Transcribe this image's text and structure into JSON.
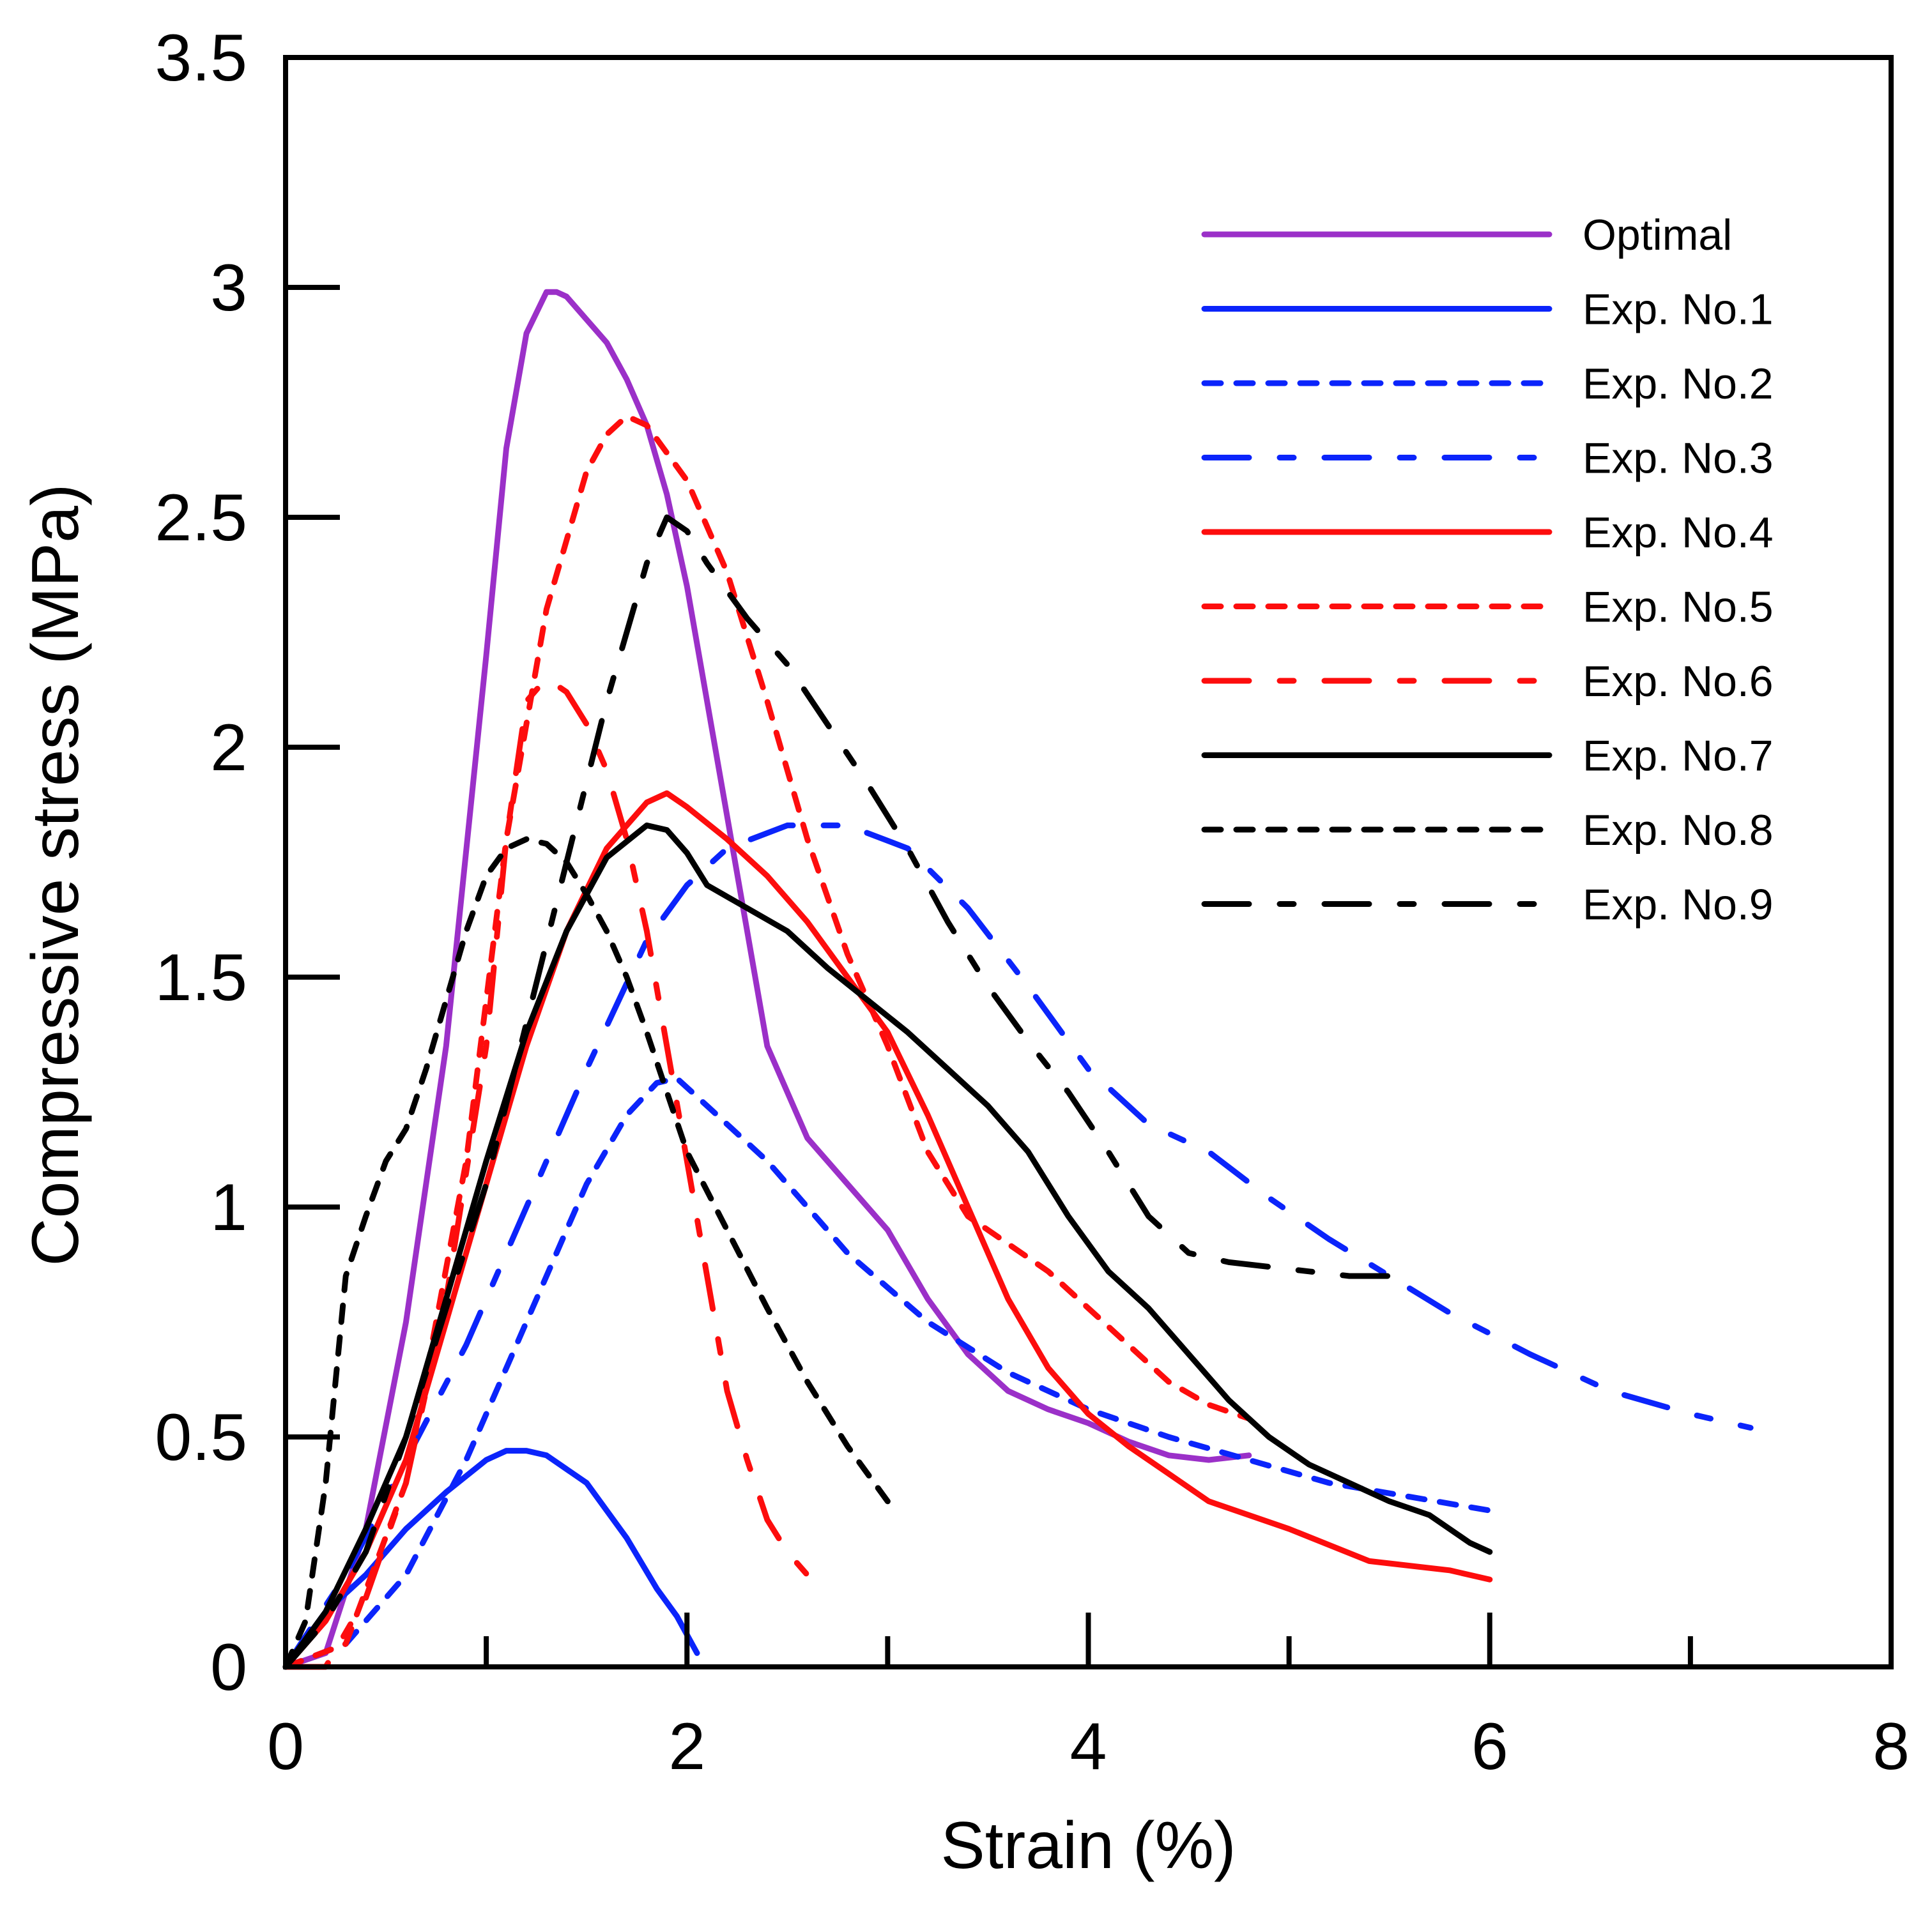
{
  "chart_data": {
    "type": "line",
    "title": "",
    "xlabel": "Strain (%)",
    "ylabel": "Compressive stress (MPa)",
    "xlim": [
      0,
      8
    ],
    "ylim": [
      0,
      3.5
    ],
    "xticks": [
      0,
      2,
      4,
      6,
      8
    ],
    "yticks": [
      0,
      0.5,
      1,
      1.5,
      2,
      2.5,
      3,
      3.5
    ],
    "xtick_labels": [
      "0",
      "2",
      "4",
      "6",
      "8"
    ],
    "ytick_labels": [
      "0",
      "0.5",
      "1",
      "1.5",
      "2",
      "2.5",
      "3",
      "3.5"
    ],
    "grid": false,
    "legend_position": "top-right",
    "series": [
      {
        "name": "Optimal",
        "color": "#9b30c8",
        "style": "solid",
        "x": [
          0,
          0.2,
          0.4,
          0.6,
          0.8,
          1.0,
          1.1,
          1.2,
          1.3,
          1.35,
          1.4,
          1.5,
          1.6,
          1.7,
          1.8,
          1.9,
          2.0,
          2.1,
          2.2,
          2.3,
          2.4,
          2.5,
          2.6,
          2.7,
          2.8,
          3.0,
          3.2,
          3.4,
          3.6,
          3.8,
          4.0,
          4.2,
          4.4,
          4.6,
          4.8
        ],
        "values": [
          0,
          0.03,
          0.3,
          0.75,
          1.35,
          2.2,
          2.65,
          2.9,
          2.99,
          2.99,
          2.98,
          2.93,
          2.88,
          2.8,
          2.7,
          2.55,
          2.35,
          2.1,
          1.85,
          1.6,
          1.35,
          1.25,
          1.15,
          1.1,
          1.05,
          0.95,
          0.8,
          0.68,
          0.6,
          0.56,
          0.53,
          0.49,
          0.46,
          0.45,
          0.46
        ]
      },
      {
        "name": "Exp. No.1",
        "color": "#0b24fb",
        "style": "solid",
        "x": [
          0,
          0.2,
          0.4,
          0.6,
          0.8,
          1.0,
          1.1,
          1.2,
          1.3,
          1.5,
          1.7,
          1.85,
          1.95,
          2.05
        ],
        "values": [
          0,
          0.12,
          0.2,
          0.3,
          0.38,
          0.45,
          0.47,
          0.47,
          0.46,
          0.4,
          0.28,
          0.17,
          0.11,
          0.03
        ]
      },
      {
        "name": "Exp. No.2",
        "color": "#0b24fb",
        "style": "dotted",
        "x": [
          0,
          0.3,
          0.6,
          0.9,
          1.2,
          1.5,
          1.7,
          1.85,
          1.95,
          2.1,
          2.4,
          2.8,
          3.2,
          3.6,
          4.0,
          4.4,
          4.8,
          5.2,
          5.6,
          6.0
        ],
        "values": [
          0,
          0.05,
          0.2,
          0.45,
          0.75,
          1.05,
          1.2,
          1.27,
          1.28,
          1.22,
          1.1,
          0.9,
          0.75,
          0.64,
          0.56,
          0.5,
          0.45,
          0.4,
          0.37,
          0.34
        ]
      },
      {
        "name": "Exp. No.3",
        "color": "#0b24fb",
        "style": "dash-dot",
        "x": [
          0,
          0.3,
          0.6,
          0.9,
          1.2,
          1.5,
          1.8,
          2.0,
          2.2,
          2.5,
          2.8,
          3.1,
          3.4,
          3.7,
          4.0,
          4.3,
          4.6,
          4.9,
          5.2,
          5.5,
          5.8,
          6.2,
          6.6,
          7.0,
          7.3
        ],
        "values": [
          0,
          0.2,
          0.45,
          0.7,
          1.0,
          1.3,
          1.58,
          1.7,
          1.78,
          1.83,
          1.83,
          1.78,
          1.65,
          1.48,
          1.3,
          1.18,
          1.12,
          1.02,
          0.93,
          0.85,
          0.77,
          0.68,
          0.6,
          0.55,
          0.52
        ]
      },
      {
        "name": "Exp. No.4",
        "color": "#fd0d0d",
        "style": "solid",
        "x": [
          0,
          0.2,
          0.4,
          0.6,
          0.8,
          1.0,
          1.2,
          1.4,
          1.6,
          1.8,
          1.9,
          2.0,
          2.2,
          2.4,
          2.6,
          2.8,
          3.0,
          3.2,
          3.4,
          3.6,
          3.8,
          4.0,
          4.2,
          4.4,
          4.6,
          5.0,
          5.4,
          5.8,
          6.0
        ],
        "values": [
          0,
          0.1,
          0.25,
          0.45,
          0.75,
          1.05,
          1.35,
          1.6,
          1.78,
          1.88,
          1.9,
          1.87,
          1.8,
          1.72,
          1.62,
          1.5,
          1.38,
          1.2,
          1.0,
          0.8,
          0.65,
          0.55,
          0.48,
          0.42,
          0.36,
          0.3,
          0.23,
          0.21,
          0.19
        ]
      },
      {
        "name": "Exp. No.5",
        "color": "#fd0d0d",
        "style": "dotted",
        "x": [
          0,
          0.3,
          0.6,
          0.9,
          1.1,
          1.3,
          1.5,
          1.6,
          1.7,
          1.8,
          2.0,
          2.2,
          2.4,
          2.6,
          2.8,
          3.0,
          3.2,
          3.4,
          3.6,
          3.8,
          4.0,
          4.2,
          4.4,
          4.6,
          4.8
        ],
        "values": [
          0,
          0.05,
          0.4,
          1.1,
          1.8,
          2.3,
          2.6,
          2.68,
          2.72,
          2.7,
          2.58,
          2.38,
          2.1,
          1.8,
          1.55,
          1.35,
          1.12,
          0.98,
          0.92,
          0.86,
          0.78,
          0.7,
          0.62,
          0.57,
          0.54
        ]
      },
      {
        "name": "Exp. No.6",
        "color": "#fd0d0d",
        "style": "dash-dot",
        "x": [
          0,
          0.2,
          0.4,
          0.6,
          0.8,
          1.0,
          1.1,
          1.2,
          1.3,
          1.4,
          1.5,
          1.6,
          1.7,
          1.8,
          1.9,
          2.0,
          2.1,
          2.2,
          2.3,
          2.4,
          2.5,
          2.6,
          2.7
        ],
        "values": [
          0,
          0.0,
          0.15,
          0.4,
          0.8,
          1.35,
          1.8,
          2.1,
          2.15,
          2.12,
          2.05,
          1.95,
          1.8,
          1.6,
          1.35,
          1.1,
          0.85,
          0.6,
          0.45,
          0.32,
          0.25,
          0.2,
          0.18
        ]
      },
      {
        "name": "Exp. No.7",
        "color": "#000000",
        "style": "solid",
        "x": [
          0,
          0.2,
          0.4,
          0.6,
          0.8,
          1.0,
          1.2,
          1.4,
          1.6,
          1.8,
          1.9,
          2.0,
          2.1,
          2.3,
          2.5,
          2.7,
          2.9,
          3.1,
          3.3,
          3.5,
          3.7,
          3.9,
          4.1,
          4.3,
          4.5,
          4.7,
          4.9,
          5.1,
          5.3,
          5.5,
          5.7,
          5.9,
          6.0
        ],
        "values": [
          0,
          0.12,
          0.3,
          0.5,
          0.8,
          1.1,
          1.38,
          1.6,
          1.76,
          1.83,
          1.82,
          1.77,
          1.7,
          1.65,
          1.6,
          1.52,
          1.45,
          1.38,
          1.3,
          1.22,
          1.12,
          0.98,
          0.86,
          0.78,
          0.68,
          0.58,
          0.5,
          0.44,
          0.4,
          0.36,
          0.33,
          0.27,
          0.25
        ]
      },
      {
        "name": "Exp. No.8",
        "color": "#000000",
        "style": "dotted",
        "x": [
          0,
          0.1,
          0.2,
          0.3,
          0.4,
          0.5,
          0.6,
          0.7,
          0.8,
          0.9,
          1.0,
          1.1,
          1.2,
          1.3,
          1.4,
          1.5,
          1.6,
          1.7,
          1.8,
          1.9,
          2.0,
          2.2,
          2.4,
          2.6,
          2.8,
          3.0
        ],
        "values": [
          0,
          0.1,
          0.4,
          0.85,
          0.98,
          1.1,
          1.17,
          1.3,
          1.45,
          1.6,
          1.72,
          1.78,
          1.8,
          1.79,
          1.75,
          1.68,
          1.6,
          1.5,
          1.38,
          1.25,
          1.12,
          0.95,
          0.78,
          0.62,
          0.48,
          0.36
        ]
      },
      {
        "name": "Exp. No.9",
        "color": "#000000",
        "style": "dash-dot",
        "x": [
          0,
          0.2,
          0.4,
          0.6,
          0.8,
          1.0,
          1.2,
          1.4,
          1.6,
          1.8,
          1.9,
          2.0,
          2.1,
          2.3,
          2.5,
          2.7,
          2.9,
          3.1,
          3.3,
          3.5,
          3.7,
          3.9,
          4.1,
          4.3,
          4.5,
          4.7,
          4.9,
          5.1,
          5.3,
          5.5
        ],
        "values": [
          0,
          0.1,
          0.25,
          0.5,
          0.78,
          1.05,
          1.4,
          1.75,
          2.1,
          2.4,
          2.5,
          2.47,
          2.4,
          2.28,
          2.18,
          2.05,
          1.92,
          1.78,
          1.62,
          1.48,
          1.36,
          1.25,
          1.12,
          0.98,
          0.9,
          0.88,
          0.87,
          0.86,
          0.85,
          0.85
        ]
      }
    ]
  }
}
